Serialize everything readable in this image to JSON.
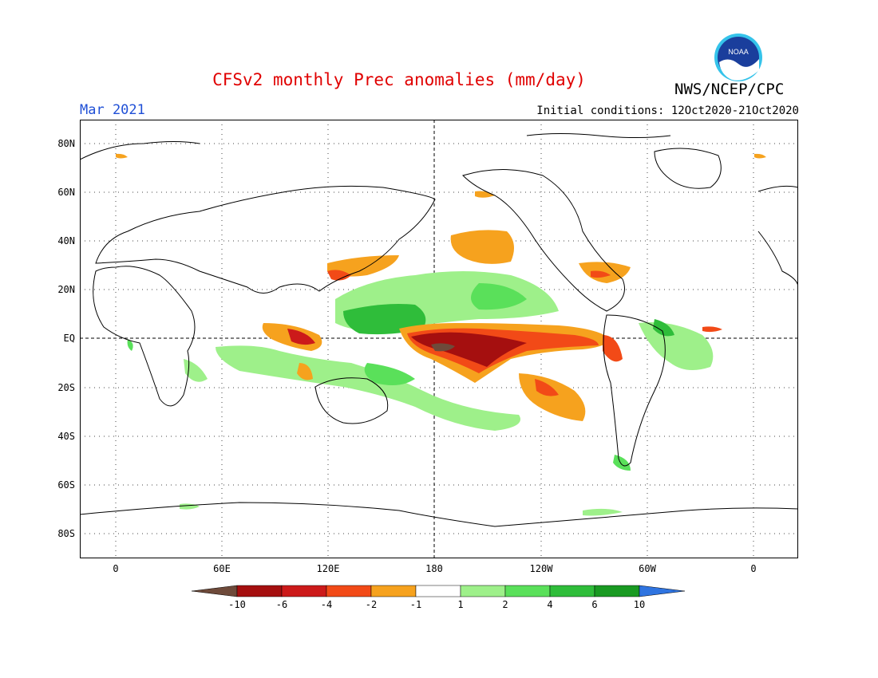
{
  "title": "CFSv2 monthly Prec anomalies (mm/day)",
  "agency": "NWS/NCEP/CPC",
  "logo_text": "NOAA",
  "month": "Mar 2021",
  "initial_conditions": "Initial conditions: 12Oct2020-21Oct2020",
  "axes": {
    "lat_labels": [
      "80N",
      "60N",
      "40N",
      "20N",
      "EQ",
      "20S",
      "40S",
      "60S",
      "80S"
    ],
    "lon_labels": [
      "0",
      "60E",
      "120E",
      "180",
      "120W",
      "60W",
      "0"
    ]
  },
  "legend": {
    "labels": [
      "-10",
      "-6",
      "-4",
      "-2",
      "-1",
      "1",
      "2",
      "4",
      "6",
      "10"
    ],
    "colors": {
      "lt_minus10": "#6e4a3a",
      "m10_m6": "#a50f0f",
      "m6_m4": "#cc1a1a",
      "m4_m2": "#f24a17",
      "m2_m1": "#f6a21e",
      "m1_1": "#ffffff",
      "1_2": "#9ef08a",
      "2_4": "#5ae05a",
      "4_6": "#2fbd3a",
      "6_10": "#199a22",
      "gt10": "#2f74e0"
    }
  },
  "colors": {
    "title": "#e00000",
    "month": "#1f4fd6"
  }
}
